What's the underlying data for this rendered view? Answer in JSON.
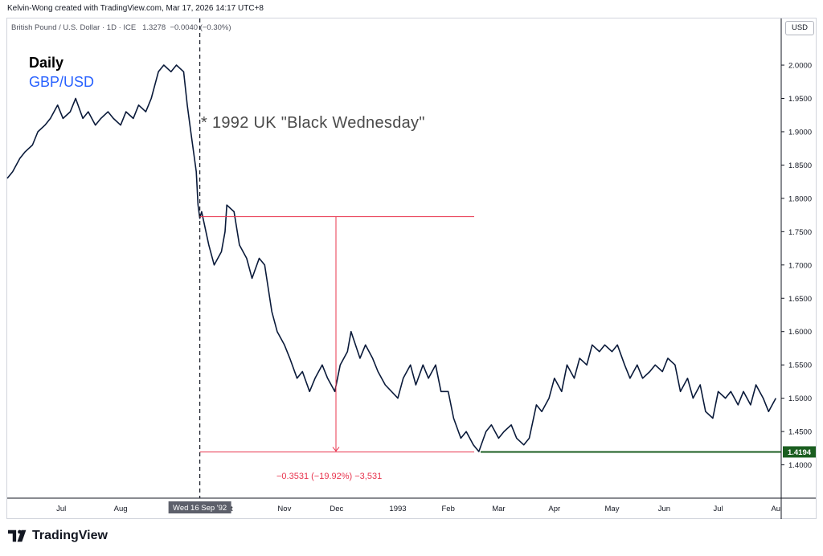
{
  "header": {
    "attribution": "Kelvin-Wong created with TradingView.com, Mar 17, 2026 14:17 UTC+8",
    "symbol_line": "British Pound / U.S. Dollar · 1D · ICE   1.3278  −0.0040 (−0.30%)",
    "currency": "USD"
  },
  "labels": {
    "timeframe": "Daily",
    "pair": "GBP/USD",
    "event": "* 1992 UK \"Black Wednesday\"",
    "measure": "−0.3531 (−19.92%) −3,531",
    "crosshair_date": "Wed 16 Sep '92",
    "last_price": "1.4194"
  },
  "brand": {
    "name": "TradingView"
  },
  "colors": {
    "line": "#0a1a3a",
    "measure": "#e8344e",
    "last_price_bg": "#1b5e20",
    "pair_text": "#2962ff",
    "crosshair_bg": "#5d606b"
  },
  "chart_data": {
    "type": "line",
    "title": "British Pound / U.S. Dollar · 1D · ICE",
    "xlabel": "",
    "ylabel": "",
    "currency": "USD",
    "ylim": [
      1.35,
      2.07
    ],
    "y_ticks": [
      "2.0000",
      "1.9500",
      "1.9000",
      "1.8500",
      "1.8000",
      "1.7500",
      "1.7000",
      "1.6500",
      "1.6000",
      "1.5500",
      "1.5000",
      "1.4500",
      "1.4000"
    ],
    "x_ticks": [
      {
        "label": "Jul",
        "date": "1992-07-01"
      },
      {
        "label": "Aug",
        "date": "1992-08-03"
      },
      {
        "label": "Oct",
        "date": "1992-10-01"
      },
      {
        "label": "Nov",
        "date": "1992-11-02"
      },
      {
        "label": "Dec",
        "date": "1992-12-01"
      },
      {
        "label": "1993",
        "date": "1993-01-04"
      },
      {
        "label": "Feb",
        "date": "1993-02-01"
      },
      {
        "label": "Mar",
        "date": "1993-03-01"
      },
      {
        "label": "Apr",
        "date": "1993-04-01"
      },
      {
        "label": "May",
        "date": "1993-05-03"
      },
      {
        "label": "Jun",
        "date": "1993-06-01"
      },
      {
        "label": "Jul",
        "date": "1993-07-01"
      },
      {
        "label": "Au",
        "date": "1993-08-02"
      }
    ],
    "series": [
      {
        "name": "GBP/USD",
        "points": [
          [
            "1992-06-01",
            1.83
          ],
          [
            "1992-06-04",
            1.84
          ],
          [
            "1992-06-08",
            1.86
          ],
          [
            "1992-06-11",
            1.87
          ],
          [
            "1992-06-15",
            1.88
          ],
          [
            "1992-06-18",
            1.9
          ],
          [
            "1992-06-22",
            1.91
          ],
          [
            "1992-06-25",
            1.92
          ],
          [
            "1992-06-29",
            1.94
          ],
          [
            "1992-07-02",
            1.92
          ],
          [
            "1992-07-06",
            1.93
          ],
          [
            "1992-07-09",
            1.95
          ],
          [
            "1992-07-13",
            1.92
          ],
          [
            "1992-07-16",
            1.93
          ],
          [
            "1992-07-20",
            1.91
          ],
          [
            "1992-07-23",
            1.92
          ],
          [
            "1992-07-27",
            1.93
          ],
          [
            "1992-07-30",
            1.92
          ],
          [
            "1992-08-03",
            1.91
          ],
          [
            "1992-08-06",
            1.93
          ],
          [
            "1992-08-10",
            1.92
          ],
          [
            "1992-08-13",
            1.94
          ],
          [
            "1992-08-17",
            1.93
          ],
          [
            "1992-08-20",
            1.95
          ],
          [
            "1992-08-24",
            1.99
          ],
          [
            "1992-08-27",
            2.0
          ],
          [
            "1992-08-31",
            1.99
          ],
          [
            "1992-09-03",
            2.0
          ],
          [
            "1992-09-07",
            1.99
          ],
          [
            "1992-09-09",
            1.94
          ],
          [
            "1992-09-11",
            1.9
          ],
          [
            "1992-09-14",
            1.84
          ],
          [
            "1992-09-15",
            1.79
          ],
          [
            "1992-09-16",
            1.77
          ],
          [
            "1992-09-17",
            1.78
          ],
          [
            "1992-09-21",
            1.73
          ],
          [
            "1992-09-24",
            1.7
          ],
          [
            "1992-09-28",
            1.72
          ],
          [
            "1992-09-30",
            1.75
          ],
          [
            "1992-10-01",
            1.79
          ],
          [
            "1992-10-05",
            1.78
          ],
          [
            "1992-10-08",
            1.73
          ],
          [
            "1992-10-12",
            1.71
          ],
          [
            "1992-10-15",
            1.68
          ],
          [
            "1992-10-19",
            1.71
          ],
          [
            "1992-10-22",
            1.7
          ],
          [
            "1992-10-26",
            1.63
          ],
          [
            "1992-10-29",
            1.6
          ],
          [
            "1992-11-02",
            1.58
          ],
          [
            "1992-11-05",
            1.56
          ],
          [
            "1992-11-09",
            1.53
          ],
          [
            "1992-11-12",
            1.54
          ],
          [
            "1992-11-16",
            1.51
          ],
          [
            "1992-11-19",
            1.53
          ],
          [
            "1992-11-23",
            1.55
          ],
          [
            "1992-11-26",
            1.53
          ],
          [
            "1992-11-30",
            1.51
          ],
          [
            "1992-12-03",
            1.55
          ],
          [
            "1992-12-07",
            1.57
          ],
          [
            "1992-12-09",
            1.6
          ],
          [
            "1992-12-14",
            1.56
          ],
          [
            "1992-12-17",
            1.58
          ],
          [
            "1992-12-21",
            1.56
          ],
          [
            "1992-12-24",
            1.54
          ],
          [
            "1992-12-28",
            1.52
          ],
          [
            "1993-01-04",
            1.5
          ],
          [
            "1993-01-07",
            1.53
          ],
          [
            "1993-01-11",
            1.55
          ],
          [
            "1993-01-14",
            1.52
          ],
          [
            "1993-01-18",
            1.55
          ],
          [
            "1993-01-21",
            1.53
          ],
          [
            "1993-01-25",
            1.55
          ],
          [
            "1993-01-28",
            1.51
          ],
          [
            "1993-02-01",
            1.51
          ],
          [
            "1993-02-04",
            1.47
          ],
          [
            "1993-02-08",
            1.44
          ],
          [
            "1993-02-11",
            1.45
          ],
          [
            "1993-02-15",
            1.43
          ],
          [
            "1993-02-18",
            1.42
          ],
          [
            "1993-02-22",
            1.45
          ],
          [
            "1993-02-25",
            1.46
          ],
          [
            "1993-03-01",
            1.44
          ],
          [
            "1993-03-04",
            1.45
          ],
          [
            "1993-03-08",
            1.46
          ],
          [
            "1993-03-11",
            1.44
          ],
          [
            "1993-03-15",
            1.43
          ],
          [
            "1993-03-18",
            1.44
          ],
          [
            "1993-03-22",
            1.49
          ],
          [
            "1993-03-25",
            1.48
          ],
          [
            "1993-03-29",
            1.5
          ],
          [
            "1993-04-01",
            1.53
          ],
          [
            "1993-04-05",
            1.51
          ],
          [
            "1993-04-08",
            1.55
          ],
          [
            "1993-04-12",
            1.53
          ],
          [
            "1993-04-15",
            1.56
          ],
          [
            "1993-04-19",
            1.55
          ],
          [
            "1993-04-22",
            1.58
          ],
          [
            "1993-04-26",
            1.57
          ],
          [
            "1993-04-29",
            1.58
          ],
          [
            "1993-05-03",
            1.57
          ],
          [
            "1993-05-06",
            1.58
          ],
          [
            "1993-05-10",
            1.55
          ],
          [
            "1993-05-13",
            1.53
          ],
          [
            "1993-05-17",
            1.55
          ],
          [
            "1993-05-20",
            1.53
          ],
          [
            "1993-05-24",
            1.54
          ],
          [
            "1993-05-27",
            1.55
          ],
          [
            "1993-05-31",
            1.54
          ],
          [
            "1993-06-03",
            1.56
          ],
          [
            "1993-06-07",
            1.55
          ],
          [
            "1993-06-10",
            1.51
          ],
          [
            "1993-06-14",
            1.53
          ],
          [
            "1993-06-17",
            1.5
          ],
          [
            "1993-06-21",
            1.52
          ],
          [
            "1993-06-24",
            1.48
          ],
          [
            "1993-06-28",
            1.47
          ],
          [
            "1993-07-01",
            1.51
          ],
          [
            "1993-07-05",
            1.5
          ],
          [
            "1993-07-08",
            1.51
          ],
          [
            "1993-07-12",
            1.49
          ],
          [
            "1993-07-15",
            1.51
          ],
          [
            "1993-07-19",
            1.49
          ],
          [
            "1993-07-22",
            1.52
          ],
          [
            "1993-07-26",
            1.5
          ],
          [
            "1993-07-29",
            1.48
          ],
          [
            "1993-08-02",
            1.5
          ]
        ]
      }
    ],
    "annotations": {
      "event_date": "1992-09-16",
      "measure_top": 1.7725,
      "measure_bottom": 1.4194,
      "measure_start": "1992-09-16",
      "measure_end": "1993-02-19",
      "measure_change": "−0.3531 (−19.92%) −3,531",
      "last_price": 1.4194
    },
    "grid": false
  }
}
